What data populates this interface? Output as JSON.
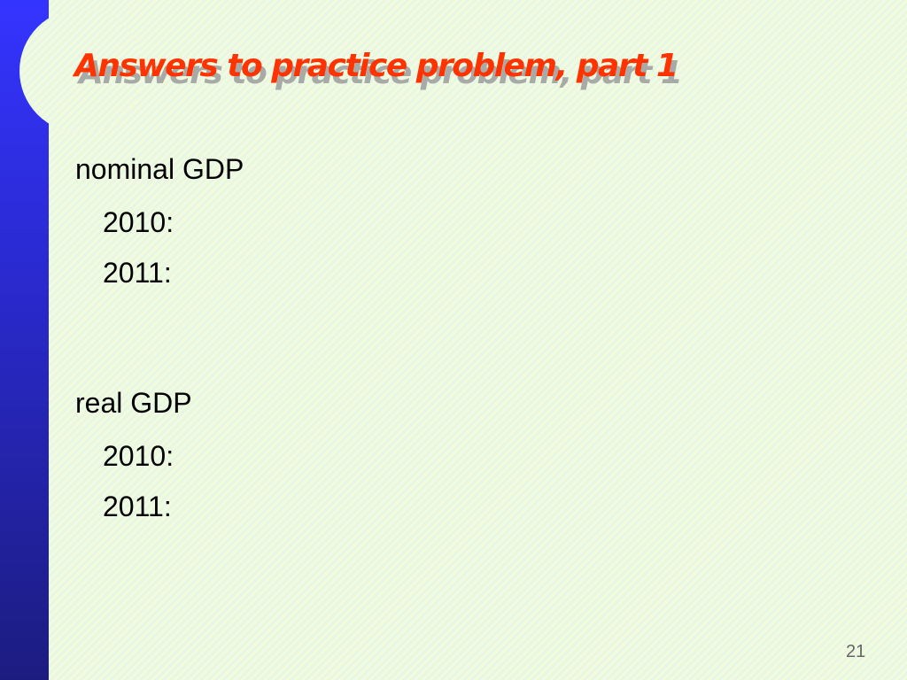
{
  "slide": {
    "title": "Answers to practice problem, part 1",
    "sections": [
      {
        "heading": "nominal GDP",
        "items": [
          "2010:",
          "2011:"
        ]
      },
      {
        "heading": "real GDP",
        "items": [
          "2010:",
          "2011:"
        ]
      }
    ],
    "page_number": "21"
  },
  "colors": {
    "title": "#ff3300",
    "sidebar": "#3434ff"
  }
}
